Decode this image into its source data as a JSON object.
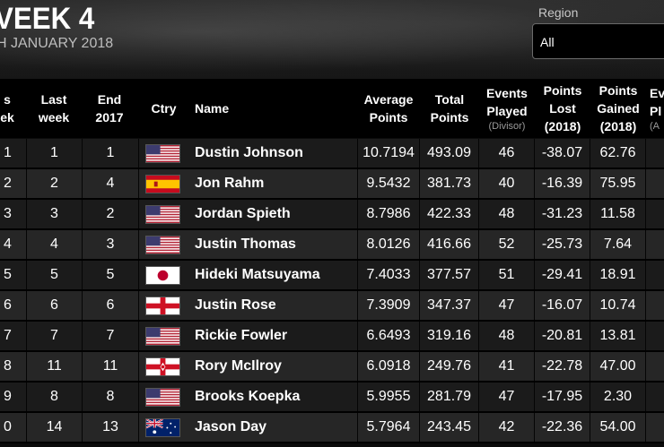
{
  "page": {
    "title": "VEEK 4",
    "subtitle": "H JANUARY 2018",
    "region_label": "Region",
    "region_value": "All"
  },
  "headers": {
    "rank": [
      "s",
      "ek"
    ],
    "last_week": [
      "Last",
      "week"
    ],
    "end_2017": [
      "End",
      "2017"
    ],
    "country": "Ctry",
    "name": "Name",
    "average_points": [
      "Average",
      "Points"
    ],
    "total_points": [
      "Total",
      "Points"
    ],
    "events_played": [
      "Events",
      "Played",
      "(Divisor)"
    ],
    "points_lost": [
      "Points",
      "Lost",
      "(2018)"
    ],
    "points_gained": [
      "Points",
      "Gained",
      "(2018)"
    ],
    "events_partial": [
      "Eve",
      "Pl",
      "(A"
    ]
  },
  "colors": {
    "background": "#0b0b0b",
    "row_odd": "#1b1b1b",
    "row_even": "#262626",
    "header": "#000000"
  },
  "rows": [
    {
      "rank": "1",
      "last_week": "1",
      "end_2017": "1",
      "country": "usa-flag-icon",
      "name": "Dustin Johnson",
      "average": "10.7194",
      "total": "493.09",
      "events": "46",
      "lost": "-38.07",
      "gained": "62.76"
    },
    {
      "rank": "2",
      "last_week": "2",
      "end_2017": "4",
      "country": "spain-flag-icon",
      "name": "Jon Rahm",
      "average": "9.5432",
      "total": "381.73",
      "events": "40",
      "lost": "-16.39",
      "gained": "75.95"
    },
    {
      "rank": "3",
      "last_week": "3",
      "end_2017": "2",
      "country": "usa-flag-icon",
      "name": "Jordan Spieth",
      "average": "8.7986",
      "total": "422.33",
      "events": "48",
      "lost": "-31.23",
      "gained": "11.58"
    },
    {
      "rank": "4",
      "last_week": "4",
      "end_2017": "3",
      "country": "usa-flag-icon",
      "name": "Justin Thomas",
      "average": "8.0126",
      "total": "416.66",
      "events": "52",
      "lost": "-25.73",
      "gained": "7.64"
    },
    {
      "rank": "5",
      "last_week": "5",
      "end_2017": "5",
      "country": "japan-flag-icon",
      "name": "Hideki Matsuyama",
      "average": "7.4033",
      "total": "377.57",
      "events": "51",
      "lost": "-29.41",
      "gained": "18.91"
    },
    {
      "rank": "6",
      "last_week": "6",
      "end_2017": "6",
      "country": "england-flag-icon",
      "name": "Justin Rose",
      "average": "7.3909",
      "total": "347.37",
      "events": "47",
      "lost": "-16.07",
      "gained": "10.74"
    },
    {
      "rank": "7",
      "last_week": "7",
      "end_2017": "7",
      "country": "usa-flag-icon",
      "name": "Rickie Fowler",
      "average": "6.6493",
      "total": "319.16",
      "events": "48",
      "lost": "-20.81",
      "gained": "13.81"
    },
    {
      "rank": "8",
      "last_week": "11",
      "end_2017": "11",
      "country": "northern-ireland-flag-icon",
      "name": "Rory McIlroy",
      "average": "6.0918",
      "total": "249.76",
      "events": "41",
      "lost": "-22.78",
      "gained": "47.00"
    },
    {
      "rank": "9",
      "last_week": "8",
      "end_2017": "8",
      "country": "usa-flag-icon",
      "name": "Brooks Koepka",
      "average": "5.9955",
      "total": "281.79",
      "events": "47",
      "lost": "-17.95",
      "gained": "2.30"
    },
    {
      "rank": "0",
      "last_week": "14",
      "end_2017": "13",
      "country": "australia-flag-icon",
      "name": "Jason Day",
      "average": "5.7964",
      "total": "243.45",
      "events": "42",
      "lost": "-22.36",
      "gained": "54.00"
    }
  ]
}
